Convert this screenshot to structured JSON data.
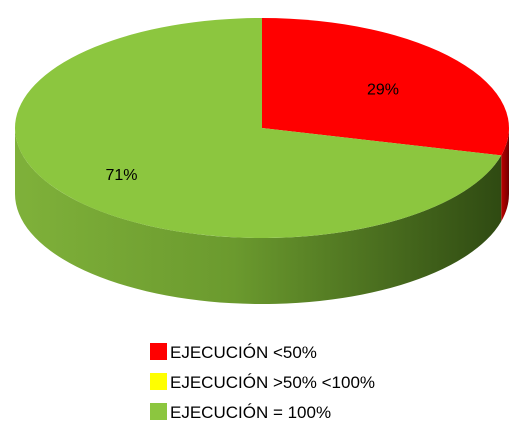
{
  "chart_data": {
    "type": "pie",
    "three_d": true,
    "title": "",
    "categories": [
      "EJECUCIÓN <50%",
      "EJECUCIÓN >50% <100%",
      "EJECUCIÓN = 100%"
    ],
    "values": [
      29,
      0,
      71
    ],
    "data_labels": [
      "29%",
      "",
      "71%"
    ],
    "colors": [
      "#ff0000",
      "#ffff00",
      "#8cc63f"
    ],
    "legend": {
      "position": "bottom",
      "entries": [
        {
          "label": "EJECUCIÓN <50%",
          "color": "#ff0000"
        },
        {
          "label": "EJECUCIÓN >50% <100%",
          "color": "#ffff00"
        },
        {
          "label": "EJECUCIÓN = 100%",
          "color": "#8cc63f"
        }
      ]
    }
  }
}
